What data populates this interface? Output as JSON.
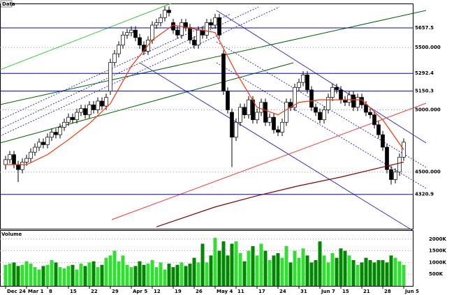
{
  "chart_data": {
    "type": "candlestick",
    "title": "Data",
    "volume_title": "Volume",
    "categories": [
      "Dec 24",
      null,
      null,
      null,
      null,
      "Mar 1",
      null,
      null,
      null,
      null,
      "8",
      null,
      null,
      null,
      null,
      "15",
      null,
      null,
      null,
      null,
      "22",
      null,
      null,
      null,
      null,
      "29",
      null,
      null,
      null,
      null,
      "Apr 5",
      null,
      null,
      null,
      null,
      "12",
      null,
      null,
      null,
      null,
      "19",
      null,
      null,
      null,
      null,
      "26",
      null,
      null,
      null,
      null,
      "May 4",
      null,
      null,
      null,
      null,
      "11",
      null,
      null,
      null,
      null,
      "17",
      null,
      null,
      null,
      null,
      "24",
      null,
      null,
      null,
      null,
      "31",
      null,
      null,
      null,
      null,
      "Jun 7",
      null,
      null,
      null,
      null,
      "15",
      null,
      null,
      null,
      null,
      "21",
      null,
      null,
      null,
      null,
      "28",
      null,
      null,
      null,
      null,
      "Jun 5"
    ],
    "candles": [
      [
        4560,
        4630,
        4520,
        4600
      ],
      [
        4600,
        4670,
        4570,
        4640
      ],
      [
        4640,
        4670,
        4530,
        4560
      ],
      [
        4560,
        4590,
        4420,
        4520
      ],
      [
        4520,
        4610,
        4490,
        4580
      ],
      [
        4580,
        4640,
        4550,
        4610
      ],
      [
        4610,
        4690,
        4580,
        4660
      ],
      [
        4660,
        4730,
        4630,
        4700
      ],
      [
        4700,
        4770,
        4670,
        4740
      ],
      [
        4740,
        4770,
        4690,
        4720
      ],
      [
        4720,
        4810,
        4690,
        4780
      ],
      [
        4780,
        4850,
        4750,
        4820
      ],
      [
        4820,
        4850,
        4770,
        4800
      ],
      [
        4800,
        4890,
        4770,
        4860
      ],
      [
        4860,
        4930,
        4830,
        4900
      ],
      [
        4900,
        4970,
        4870,
        4940
      ],
      [
        4940,
        4970,
        4890,
        4920
      ],
      [
        4920,
        5010,
        4890,
        4980
      ],
      [
        4980,
        5040,
        4950,
        5010
      ],
      [
        5010,
        5040,
        4930,
        4960
      ],
      [
        4960,
        5070,
        4930,
        5040
      ],
      [
        5040,
        5070,
        4970,
        5000
      ],
      [
        5000,
        5100,
        4970,
        5070
      ],
      [
        5070,
        5100,
        5000,
        5030
      ],
      [
        5030,
        5130,
        5000,
        5100
      ],
      [
        5150,
        5410,
        5120,
        5380
      ],
      [
        5380,
        5480,
        5350,
        5450
      ],
      [
        5450,
        5550,
        5420,
        5520
      ],
      [
        5520,
        5630,
        5490,
        5600
      ],
      [
        5600,
        5650,
        5570,
        5620
      ],
      [
        5620,
        5670,
        5590,
        5640
      ],
      [
        5640,
        5670,
        5550,
        5580
      ],
      [
        5580,
        5610,
        5490,
        5520
      ],
      [
        5520,
        5550,
        5440,
        5470
      ],
      [
        5470,
        5590,
        5440,
        5560
      ],
      [
        5560,
        5710,
        5530,
        5680
      ],
      [
        5680,
        5730,
        5650,
        5700
      ],
      [
        5700,
        5770,
        5670,
        5740
      ],
      [
        5740,
        5830,
        5710,
        5800
      ],
      [
        5800,
        5830,
        5750,
        5780
      ],
      [
        5700,
        5730,
        5610,
        5640
      ],
      [
        5640,
        5670,
        5570,
        5600
      ],
      [
        5600,
        5730,
        5570,
        5700
      ],
      [
        5700,
        5730,
        5630,
        5660
      ],
      [
        5660,
        5690,
        5530,
        5560
      ],
      [
        5560,
        5590,
        5490,
        5520
      ],
      [
        5520,
        5670,
        5490,
        5640
      ],
      [
        5640,
        5670,
        5570,
        5600
      ],
      [
        5600,
        5730,
        5570,
        5700
      ],
      [
        5700,
        5730,
        5650,
        5680
      ],
      [
        5680,
        5770,
        5650,
        5740
      ],
      [
        5740,
        5770,
        5570,
        5600
      ],
      [
        5450,
        5480,
        5120,
        5150
      ],
      [
        5150,
        5180,
        4970,
        5000
      ],
      [
        4980,
        5010,
        4540,
        4780
      ],
      [
        4780,
        4930,
        4750,
        4900
      ],
      [
        4900,
        5050,
        4870,
        5020
      ],
      [
        5020,
        5050,
        4930,
        4960
      ],
      [
        4960,
        5110,
        4930,
        5080
      ],
      [
        5080,
        5110,
        4890,
        4920
      ],
      [
        4920,
        5010,
        4890,
        4980
      ],
      [
        4980,
        5090,
        4950,
        5060
      ],
      [
        5060,
        5090,
        4870,
        4900
      ],
      [
        4900,
        4970,
        4870,
        4940
      ],
      [
        4940,
        4970,
        4810,
        4840
      ],
      [
        4840,
        4870,
        4790,
        4820
      ],
      [
        4820,
        4930,
        4790,
        4900
      ],
      [
        4900,
        5090,
        4870,
        5060
      ],
      [
        5060,
        5090,
        4990,
        5020
      ],
      [
        5020,
        5210,
        4990,
        5180
      ],
      [
        5180,
        5250,
        5150,
        5220
      ],
      [
        5220,
        5310,
        5190,
        5280
      ],
      [
        5280,
        5310,
        5130,
        5160
      ],
      [
        5160,
        5190,
        4990,
        5020
      ],
      [
        5020,
        5050,
        4950,
        4980
      ],
      [
        4980,
        5010,
        4890,
        4920
      ],
      [
        4920,
        5030,
        4890,
        5000
      ],
      [
        5000,
        5130,
        4970,
        5100
      ],
      [
        5100,
        5210,
        5070,
        5180
      ],
      [
        5180,
        5210,
        5130,
        5160
      ],
      [
        5160,
        5190,
        5050,
        5080
      ],
      [
        5080,
        5110,
        5030,
        5060
      ],
      [
        5060,
        5150,
        5030,
        5120
      ],
      [
        5120,
        5150,
        4990,
        5020
      ],
      [
        5020,
        5130,
        4990,
        5100
      ],
      [
        5100,
        5130,
        5010,
        5040
      ],
      [
        5040,
        5070,
        4950,
        4980
      ],
      [
        4980,
        5010,
        4930,
        4960
      ],
      [
        4960,
        4990,
        4850,
        4880
      ],
      [
        4880,
        4910,
        4770,
        4800
      ],
      [
        4800,
        4830,
        4670,
        4700
      ],
      [
        4700,
        4730,
        4490,
        4520
      ],
      [
        4520,
        4550,
        4400,
        4440
      ],
      [
        4440,
        4530,
        4410,
        4500
      ],
      [
        4500,
        4650,
        4470,
        4620
      ],
      [
        4620,
        4770,
        4590,
        4740
      ]
    ],
    "up_color": "#ffffff",
    "down_color": "#000000",
    "ylim": [
      4045,
      5848
    ],
    "yticks": [
      {
        "value": 4500,
        "label": "4500.000"
      },
      {
        "value": 5000,
        "label": "5000.000"
      },
      {
        "value": 5500,
        "label": "5500.000"
      }
    ],
    "levels": [
      5657.5,
      5292.4,
      5150.3,
      4320.9
    ],
    "level_color": "#0000cc",
    "lines": [
      {
        "color": "#ff3300",
        "x": [
          0,
          5,
          10,
          15,
          20,
          25,
          30,
          35,
          40,
          45,
          50,
          55,
          60,
          65,
          70,
          75,
          80,
          85,
          90,
          95
        ],
        "values": [
          4560,
          4560,
          4640,
          4760,
          4890,
          5050,
          5350,
          5560,
          5680,
          5650,
          5620,
          5300,
          5020,
          4960,
          5060,
          5080,
          5080,
          5080,
          4920,
          4680
        ]
      },
      {
        "color": "#880000",
        "x": [
          36,
          50,
          60,
          70,
          80,
          90,
          95
        ],
        "values": [
          4060,
          4220,
          4310,
          4390,
          4460,
          4540,
          4580
        ]
      }
    ],
    "volume": [
      900,
      950,
      1000,
      850,
      900,
      1050,
      950,
      800,
      700,
      850,
      900,
      1100,
      1000,
      800,
      750,
      850,
      900,
      700,
      950,
      850,
      1000,
      1050,
      800,
      900,
      1200,
      1300,
      1500,
      1050,
      1300,
      900,
      800,
      850,
      1050,
      900,
      950,
      1100,
      800,
      1000,
      700,
      950,
      800,
      900,
      1000,
      850,
      950,
      1200,
      1000,
      1800,
      1000,
      1300,
      2050,
      1500,
      1900,
      1300,
      1800,
      1900,
      1400,
      1050,
      1500,
      1700,
      1300,
      1800,
      1500,
      1100,
      1300,
      1400,
      1200,
      1700,
      1000,
      1500,
      1200,
      1600,
      1300,
      1000,
      1100,
      1900,
      1300,
      1000,
      1400,
      1200,
      1600,
      1500,
      1300,
      1100,
      900,
      1000,
      1200,
      1100,
      1000,
      1100,
      1100,
      1000,
      1300,
      1200,
      1050,
      900
    ],
    "volume_up_color": "#33dd33",
    "volume_down_color": "#008800",
    "vlim": [
      0,
      2350
    ],
    "vticks": [
      {
        "value": 500,
        "label": "500K"
      },
      {
        "value": 1000,
        "label": "1000K"
      },
      {
        "value": 1500,
        "label": "1500K"
      },
      {
        "value": 2000,
        "label": "2000K"
      }
    ]
  }
}
